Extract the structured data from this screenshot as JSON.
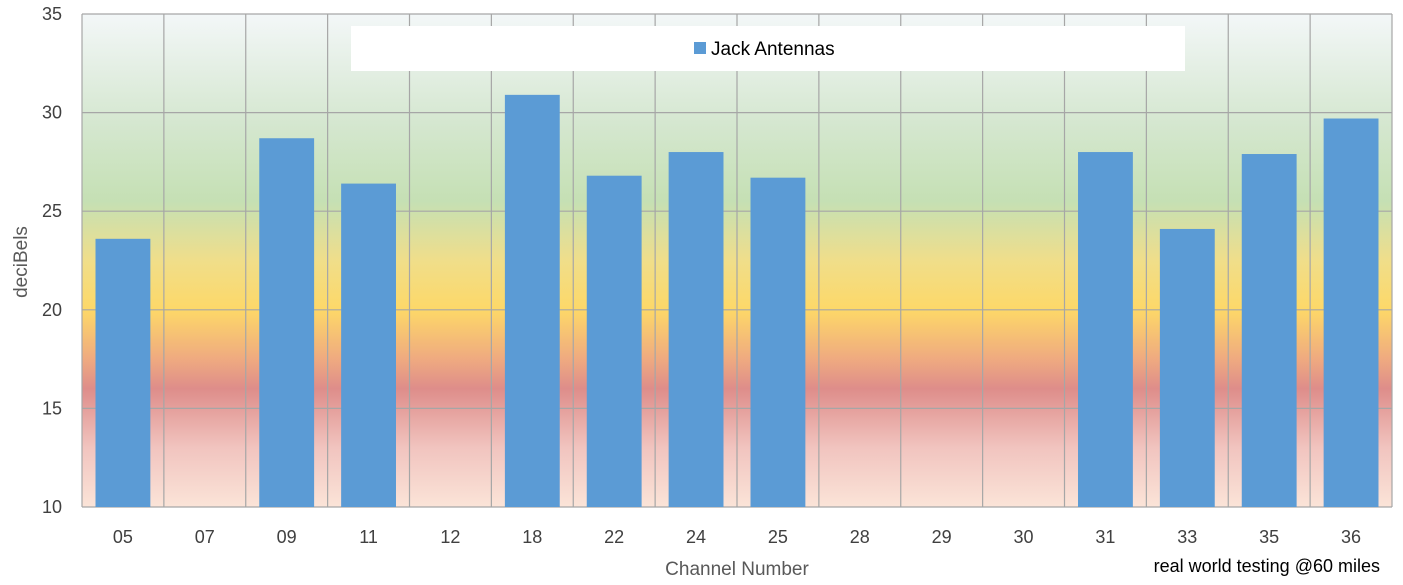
{
  "chart_data": {
    "type": "bar",
    "xlabel": "Channel Number",
    "ylabel": "deciBels",
    "ylim": [
      10,
      35
    ],
    "y_ticks": [
      "10",
      "15",
      "20",
      "25",
      "30",
      "35"
    ],
    "categories": [
      "05",
      "07",
      "09",
      "11",
      "12",
      "18",
      "22",
      "24",
      "25",
      "28",
      "29",
      "30",
      "31",
      "33",
      "35",
      "36"
    ],
    "series": [
      {
        "name": "Jack Antennas",
        "color": "#5b9bd5",
        "values": [
          23.6,
          null,
          28.7,
          26.4,
          null,
          30.9,
          26.8,
          28.0,
          26.7,
          null,
          null,
          null,
          28.0,
          24.1,
          27.9,
          29.7
        ]
      }
    ],
    "grid": true,
    "legend_position": "top",
    "annotation": "real world testing @60 miles",
    "background": "gradient"
  }
}
